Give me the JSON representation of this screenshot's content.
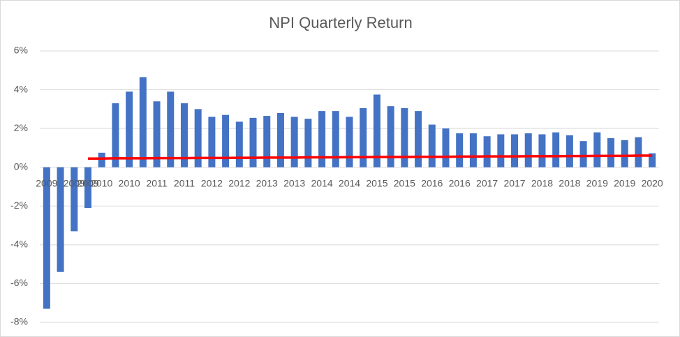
{
  "chart_data": {
    "type": "bar",
    "title": "NPI Quarterly Return",
    "categories": [
      "2009",
      null,
      "2009",
      "2009",
      "2010",
      null,
      "2010",
      null,
      "2011",
      null,
      "2011",
      null,
      "2012",
      null,
      "2012",
      null,
      "2013",
      null,
      "2013",
      null,
      "2014",
      null,
      "2014",
      null,
      "2015",
      null,
      "2015",
      null,
      "2016",
      null,
      "2016",
      null,
      "2017",
      null,
      "2017",
      null,
      "2018",
      null,
      "2018",
      null,
      "2019",
      null,
      "2019",
      null,
      "2020"
    ],
    "series": [
      {
        "type": "bar",
        "color": "#4472c4",
        "values": [
          -7.3,
          -5.4,
          -3.3,
          -2.1,
          0.75,
          3.3,
          3.9,
          4.65,
          3.4,
          3.9,
          3.3,
          3.0,
          2.6,
          2.7,
          2.35,
          2.55,
          2.65,
          2.8,
          2.6,
          2.5,
          2.9,
          2.9,
          2.6,
          3.05,
          3.75,
          3.15,
          3.05,
          2.9,
          2.2,
          2.0,
          1.75,
          1.75,
          1.6,
          1.7,
          1.7,
          1.75,
          1.7,
          1.8,
          1.65,
          1.35,
          1.8,
          1.5,
          1.4,
          1.55,
          0.72
        ]
      },
      {
        "type": "line",
        "color": "#ff0000",
        "values": [
          null,
          null,
          null,
          0.45,
          0.45,
          0.46,
          0.46,
          0.46,
          0.47,
          0.47,
          0.47,
          0.48,
          0.48,
          0.48,
          0.49,
          0.49,
          0.5,
          0.5,
          0.5,
          0.51,
          0.51,
          0.51,
          0.52,
          0.52,
          0.53,
          0.53,
          0.53,
          0.54,
          0.54,
          0.54,
          0.55,
          0.55,
          0.56,
          0.56,
          0.56,
          0.57,
          0.57,
          0.57,
          0.58,
          0.58,
          0.59,
          0.59,
          0.59,
          0.6,
          0.6
        ]
      }
    ],
    "ylim": [
      -8,
      6
    ],
    "yticks": [
      {
        "value": -8,
        "label": "-8%"
      },
      {
        "value": -6,
        "label": "-6%"
      },
      {
        "value": -4,
        "label": "-4%"
      },
      {
        "value": -2,
        "label": "-2%"
      },
      {
        "value": 0,
        "label": "0%"
      },
      {
        "value": 2,
        "label": "2%"
      },
      {
        "value": 4,
        "label": "4%"
      },
      {
        "value": 6,
        "label": "6%"
      }
    ],
    "grid": true
  }
}
